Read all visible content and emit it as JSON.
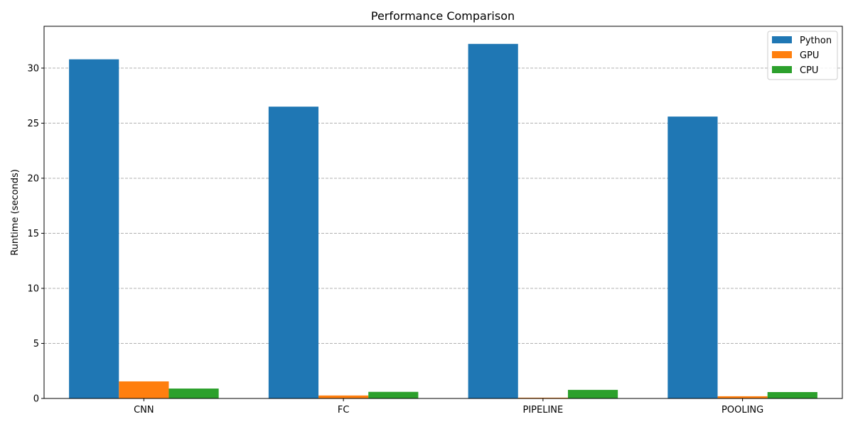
{
  "chart_data": {
    "type": "bar",
    "title": "Performance Comparison",
    "xlabel": "",
    "ylabel": "Runtime (seconds)",
    "categories": [
      "CNN",
      "FC",
      "PIPELINE",
      "POOLING"
    ],
    "series": [
      {
        "name": "Python",
        "values": [
          30.8,
          26.5,
          32.2,
          25.6
        ],
        "color": "#1f77b4"
      },
      {
        "name": "GPU",
        "values": [
          1.55,
          0.27,
          0.07,
          0.2
        ],
        "color": "#ff7f0e"
      },
      {
        "name": "CPU",
        "values": [
          0.9,
          0.6,
          0.78,
          0.58
        ],
        "color": "#2ca02c"
      }
    ],
    "ylim": [
      0,
      33.8
    ],
    "yticks": [
      0,
      5,
      10,
      15,
      20,
      25,
      30
    ],
    "grid": "y-dashed",
    "legend_position": "top-right"
  }
}
